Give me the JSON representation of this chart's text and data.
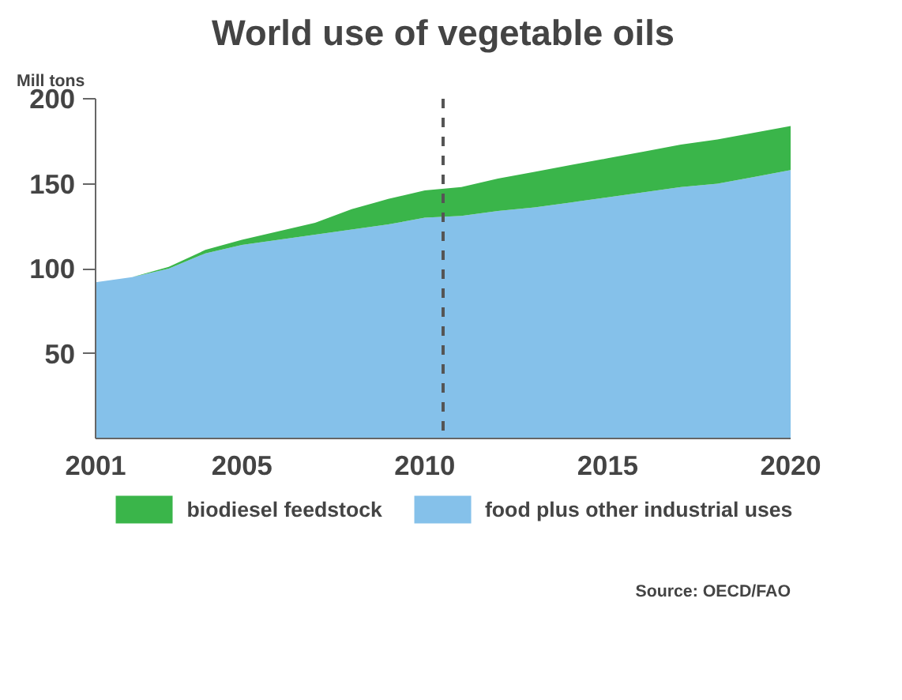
{
  "chart_data": {
    "type": "area",
    "title": "World use of vegetable oils",
    "ylabel": "Mill tons",
    "stacked": true,
    "x": [
      2001,
      2002,
      2003,
      2004,
      2005,
      2006,
      2007,
      2008,
      2009,
      2010,
      2011,
      2012,
      2013,
      2014,
      2015,
      2016,
      2017,
      2018,
      2019,
      2020
    ],
    "series": [
      {
        "name": "food plus other industrial uses",
        "color": "#85c1ea",
        "values": [
          92,
          95,
          100,
          109,
          114,
          117,
          120,
          123,
          126,
          130,
          131,
          134,
          136,
          139,
          142,
          145,
          148,
          150,
          154,
          158
        ]
      },
      {
        "name": "biodiesel feedstock",
        "color": "#3ab54a",
        "values": [
          0,
          0,
          1,
          2,
          3,
          5,
          7,
          12,
          15,
          16,
          17,
          19,
          21,
          22,
          23,
          24,
          25,
          26,
          26,
          26
        ]
      }
    ],
    "xlim": [
      2001,
      2020
    ],
    "xticks": [
      2001,
      2005,
      2010,
      2015,
      2020
    ],
    "ylim": [
      0,
      200
    ],
    "yticks": [
      50,
      100,
      150,
      200
    ],
    "ref_lines": [
      {
        "axis": "x",
        "value": 2010.5,
        "color": "#555555",
        "line_style": "dashed"
      }
    ],
    "grid": false,
    "legend": "bottom",
    "annotations": [
      "Source: OECD/FAO"
    ]
  }
}
